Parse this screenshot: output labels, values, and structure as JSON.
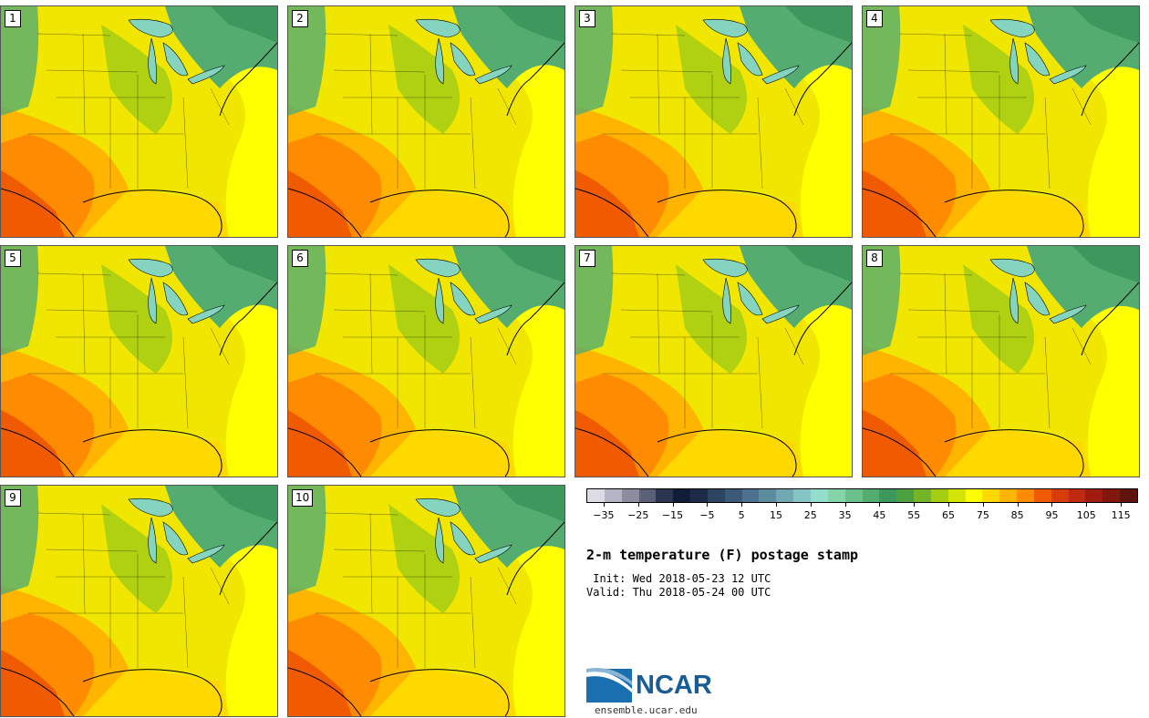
{
  "panels": [
    {
      "label": "1"
    },
    {
      "label": "2"
    },
    {
      "label": "3"
    },
    {
      "label": "4"
    },
    {
      "label": "5"
    },
    {
      "label": "6"
    },
    {
      "label": "7"
    },
    {
      "label": "8"
    },
    {
      "label": "9"
    },
    {
      "label": "10"
    }
  ],
  "legend": {
    "ticks": [
      "-35",
      "-25",
      "-15",
      "-5",
      "5",
      "15",
      "25",
      "35",
      "45",
      "55",
      "65",
      "75",
      "85",
      "95",
      "105",
      "115"
    ],
    "range": [
      -40,
      120
    ],
    "step": 5,
    "colors": [
      "#dcdce4",
      "#b4b4c4",
      "#8c8ca0",
      "#5a6078",
      "#2c3450",
      "#101c38",
      "#1c2c48",
      "#2c4460",
      "#3c5a78",
      "#4c7090",
      "#5c8ca0",
      "#70a8b4",
      "#84c4c4",
      "#94dccc",
      "#84d4a8",
      "#6cc08c",
      "#54ac70",
      "#3c985c",
      "#4ca040",
      "#74b428",
      "#a4cc14",
      "#d4e400",
      "#ffff00",
      "#ffd800",
      "#ffb400",
      "#ff8c00",
      "#f05a00",
      "#d83c08",
      "#c02810",
      "#a01c10",
      "#801810",
      "#601410"
    ]
  },
  "map_colors": {
    "land_base": "#f0e600",
    "ocean": "#ffff00",
    "gulf": "#ffd800",
    "warm": "#ffb400",
    "hot": "#ff8c00",
    "hottest": "#f05a00",
    "cool_green": "#a4cc14",
    "green": "#54ac70",
    "dark_green": "#3c985c",
    "lakes": "#84d4c0"
  },
  "title": "2-m temperature (F) postage stamp",
  "init": " Init: Wed 2018-05-23 12 UTC",
  "valid": "Valid: Thu 2018-05-24 00 UTC",
  "logo": {
    "name": "NCAR",
    "url": "ensemble.ucar.edu"
  }
}
